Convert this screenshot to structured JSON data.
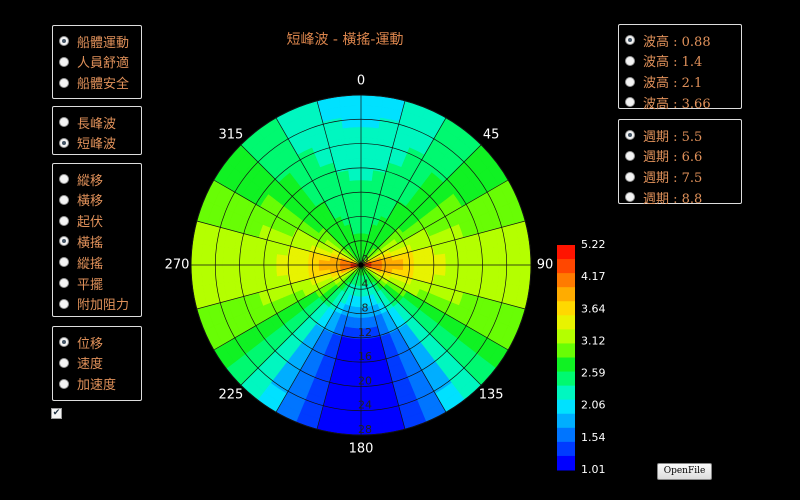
{
  "title": "短峰波 - 橫搖-運動",
  "left_groups": [
    {
      "options": [
        "船體運動",
        "人員舒適",
        "船體安全"
      ],
      "selected": 0
    },
    {
      "options": [
        "長峰波",
        "短峰波"
      ],
      "selected": 1
    },
    {
      "options": [
        "縱移",
        "橫移",
        "起伏",
        "橫搖",
        "縱搖",
        "平擺",
        "附加阻力"
      ],
      "selected": 3
    },
    {
      "options": [
        "位移",
        "速度",
        "加速度"
      ],
      "selected": 0
    }
  ],
  "right_groups": [
    {
      "options": [
        "波高 : 0.88",
        "波高 : 1.4",
        "波高 : 2.1",
        "波高 : 3.66"
      ],
      "selected": 0
    },
    {
      "options": [
        "週期 : 5.5",
        "週期 : 6.6",
        "週期 : 7.5",
        "週期 : 8.8"
      ],
      "selected": 0
    }
  ],
  "checkbox_checked": true,
  "polar": {
    "angle_labels": [
      0,
      45,
      90,
      135,
      180,
      225,
      270,
      315
    ],
    "radial_labels": [
      0,
      4,
      8,
      12,
      16,
      20,
      24,
      28
    ]
  },
  "colorbar_labels": [
    5.22,
    4.17,
    3.64,
    3.12,
    2.59,
    2.06,
    1.54,
    1.01
  ],
  "button": "OpenFile"
}
